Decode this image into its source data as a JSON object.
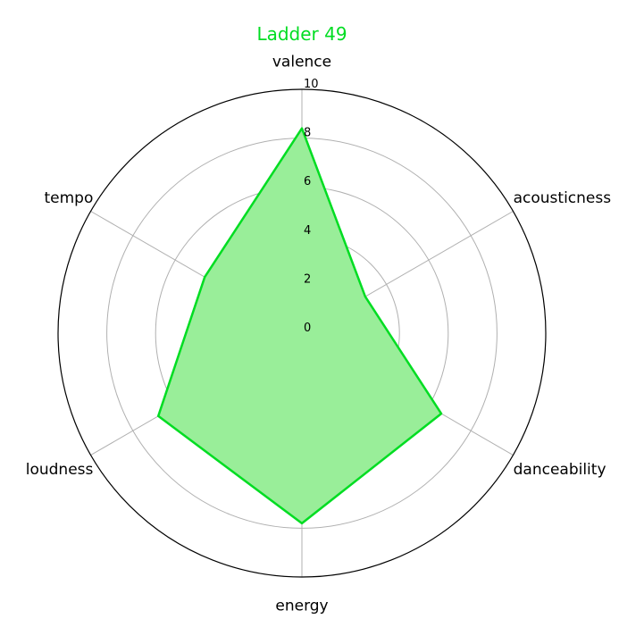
{
  "chart_data": {
    "type": "radar",
    "title": "Ladder 49",
    "title_color": "#00dd22",
    "axes": [
      "valence",
      "acousticness",
      "danceability",
      "energy",
      "loudness",
      "tempo"
    ],
    "values": [
      8.4,
      3.0,
      6.6,
      7.8,
      6.8,
      4.6
    ],
    "rmax": 10,
    "radial_ticks": [
      "0",
      "2",
      "4",
      "6",
      "8",
      "10"
    ],
    "radial_tick_values": [
      0,
      2,
      4,
      6,
      8,
      10
    ],
    "series_color": "#00dd22",
    "fill_color": "#99ee99",
    "grid": true
  }
}
